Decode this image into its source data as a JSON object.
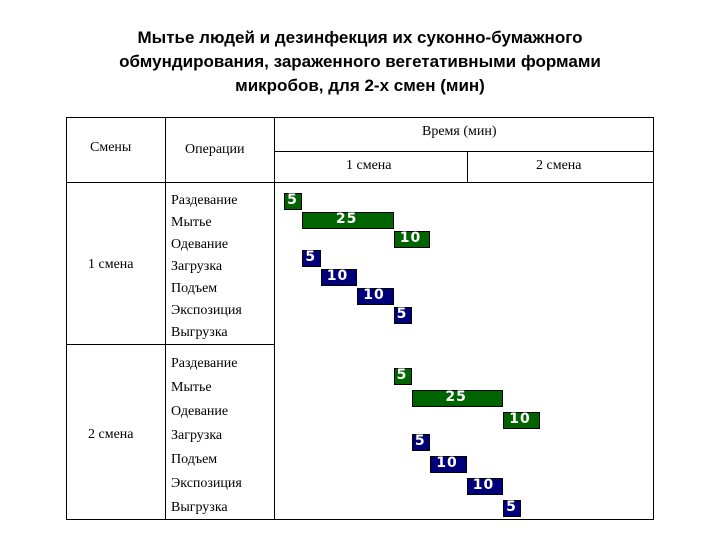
{
  "title": {
    "line1": "Мытье людей и дезинфекция их суконно-бумажного",
    "line2": "обмундирования, зараженного вегетативными формами",
    "line3": "микробов, для 2-х смен (мин)"
  },
  "table": {
    "col_shifts": "Смены",
    "col_operations": "Операции",
    "col_time": "Время (мин)",
    "sub_shift1": "1 смена",
    "sub_shift2": "2 смена",
    "groups": [
      {
        "shift": "1 смена",
        "operations": [
          "Раздевание",
          "Мытье",
          "Одевание",
          "Загрузка",
          "Подъем",
          "Экспозиция",
          "Выгрузка"
        ]
      },
      {
        "shift": "2 смена",
        "operations": [
          "Раздевание",
          "Мытье",
          "Одевание",
          "Загрузка",
          "Подъем",
          "Экспозиция",
          "Выгрузка"
        ]
      }
    ]
  },
  "chart_data": {
    "type": "gantt",
    "unit": "мин",
    "colors": {
      "people": "#006400",
      "clothing": "#00007b"
    },
    "tasks": [
      {
        "group": "1 смена",
        "operation": "Раздевание",
        "start": 0,
        "duration": 5,
        "label": "5",
        "color": "#006400"
      },
      {
        "group": "1 смена",
        "operation": "Мытье",
        "start": 5,
        "duration": 25,
        "label": "25",
        "color": "#006400"
      },
      {
        "group": "1 смена",
        "operation": "Одевание",
        "start": 30,
        "duration": 10,
        "label": "10",
        "color": "#006400"
      },
      {
        "group": "1 смена",
        "operation": "Загрузка",
        "start": 5,
        "duration": 5,
        "label": "5",
        "color": "#00007b"
      },
      {
        "group": "1 смена",
        "operation": "Подъем",
        "start": 10,
        "duration": 10,
        "label": "10",
        "color": "#00007b"
      },
      {
        "group": "1 смена",
        "operation": "Экспозиция",
        "start": 20,
        "duration": 10,
        "label": "10",
        "color": "#00007b"
      },
      {
        "group": "1 смена",
        "operation": "Выгрузка",
        "start": 30,
        "duration": 5,
        "label": "5",
        "color": "#00007b"
      },
      {
        "group": "2 смена",
        "operation": "Раздевание",
        "start": 30,
        "duration": 5,
        "label": "5",
        "color": "#006400"
      },
      {
        "group": "2 смена",
        "operation": "Мытье",
        "start": 35,
        "duration": 25,
        "label": "25",
        "color": "#006400"
      },
      {
        "group": "2 смена",
        "operation": "Одевание",
        "start": 60,
        "duration": 10,
        "label": "10",
        "color": "#006400"
      },
      {
        "group": "2 смена",
        "operation": "Загрузка",
        "start": 35,
        "duration": 5,
        "label": "5",
        "color": "#00007b"
      },
      {
        "group": "2 смена",
        "operation": "Подъем",
        "start": 40,
        "duration": 10,
        "label": "10",
        "color": "#00007b"
      },
      {
        "group": "2 смена",
        "operation": "Экспозиция",
        "start": 50,
        "duration": 10,
        "label": "10",
        "color": "#00007b"
      },
      {
        "group": "2 смена",
        "operation": "Выгрузка",
        "start": 60,
        "duration": 5,
        "label": "5",
        "color": "#00007b"
      }
    ]
  }
}
